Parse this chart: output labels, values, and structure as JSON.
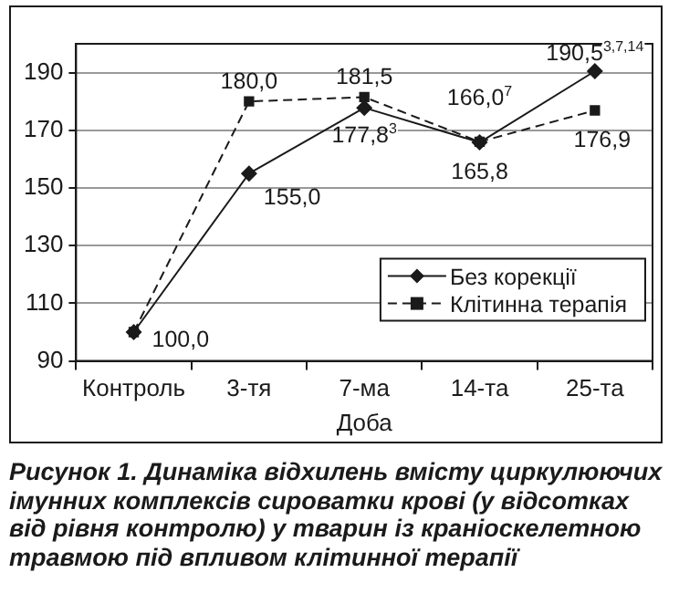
{
  "chart_data": {
    "type": "line",
    "xlabel": "Доба",
    "categories": [
      "Контроль",
      "3-тя",
      "7-ма",
      "14-та",
      "25-та"
    ],
    "series": [
      {
        "name": "Без корекції",
        "color": "#1a1a1a",
        "marker": "diamond",
        "line_style": "solid",
        "values": [
          100,
          155,
          177.8,
          165.8,
          190.5
        ],
        "value_labels": [
          "100,0",
          "155,0",
          "177,8$^{3}$",
          "165,8",
          "190,5$^{3,7,14}$"
        ]
      },
      {
        "name": "Клітинна терапія",
        "color": "#1a1a1a",
        "marker": "square",
        "line_style": "dashed",
        "values": [
          100,
          180,
          181.5,
          166,
          176.9
        ],
        "value_labels": [
          null,
          "180,0",
          "181,5",
          "166,0$^{7}$",
          "176,9"
        ]
      }
    ],
    "ylim": [
      90,
      200
    ],
    "yticks": [
      90,
      110,
      130,
      150,
      170,
      190
    ],
    "grid": "y",
    "legend": "bottom right",
    "annotations": [
      "Рисунок 1. Динаміка відхилень вмісту циркулюючих імунних комплексів сироватки крові (у відсотках від рівня контролю) у тварин із краніоскелетною травмою під впливом клітинної терапії"
    ]
  }
}
